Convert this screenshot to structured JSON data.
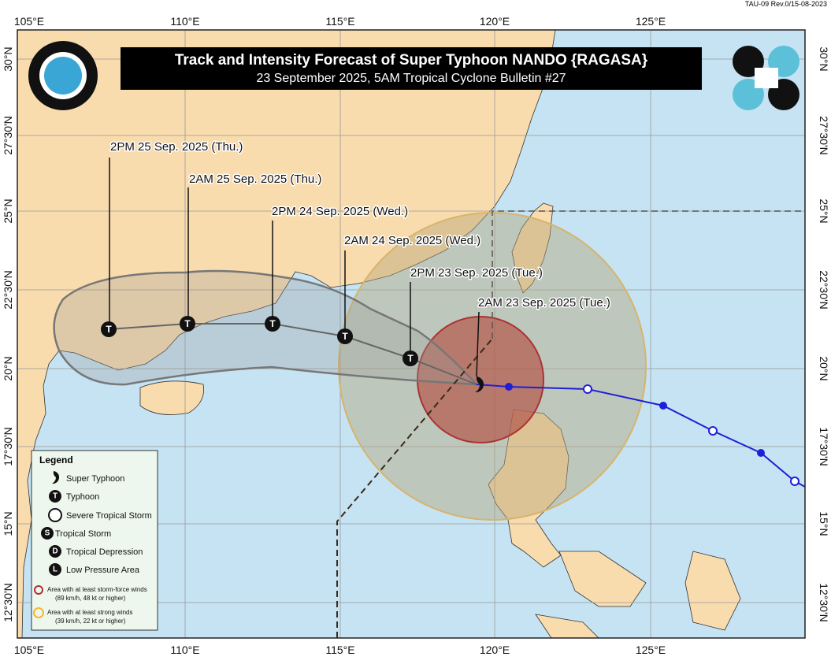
{
  "header": {
    "code": "TAU-09 Rev.0/15-08-2023",
    "title": "Track and Intensity Forecast of Super Typhoon NANDO {RAGASA}",
    "subtitle": "23 September 2025, 5AM Tropical Cyclone Bulletin #27"
  },
  "longitude_labels": [
    "105°E",
    "110°E",
    "115°E",
    "120°E",
    "125°E"
  ],
  "latitude_labels": [
    "30°N",
    "27°30'N",
    "25°N",
    "22°30'N",
    "20°N",
    "17°30'N",
    "15°N",
    "12°30'N"
  ],
  "forecast_points": [
    {
      "label": "2AM 23 Sep. 2025 (Tue.)"
    },
    {
      "label": "2PM 23 Sep. 2025 (Tue.)",
      "symbol": "T"
    },
    {
      "label": "2AM 24 Sep. 2025 (Wed.)",
      "symbol": "T"
    },
    {
      "label": "2PM 24 Sep. 2025 (Wed.)",
      "symbol": "T"
    },
    {
      "label": "2AM 25 Sep. 2025 (Thu.)",
      "symbol": "T"
    },
    {
      "label": "2PM 25 Sep. 2025 (Thu.)",
      "symbol": "T"
    }
  ],
  "legend": {
    "title": "Legend",
    "items": [
      {
        "label": "Super Typhoon"
      },
      {
        "symbol": "T",
        "label": "Typhoon"
      },
      {
        "label": "Severe Tropical Storm"
      },
      {
        "symbol": "S",
        "label": "Tropical Storm"
      },
      {
        "symbol": "D",
        "label": "Tropical Depression"
      },
      {
        "symbol": "L",
        "label": "Low Pressure Area"
      }
    ],
    "areas": [
      {
        "label": "Area with at least storm-force winds",
        "detail": "(89 km/h, 48 kt or higher)"
      },
      {
        "label": "Area with at least strong winds",
        "detail": "(39 km/h, 22 kt or higher)"
      }
    ]
  }
}
